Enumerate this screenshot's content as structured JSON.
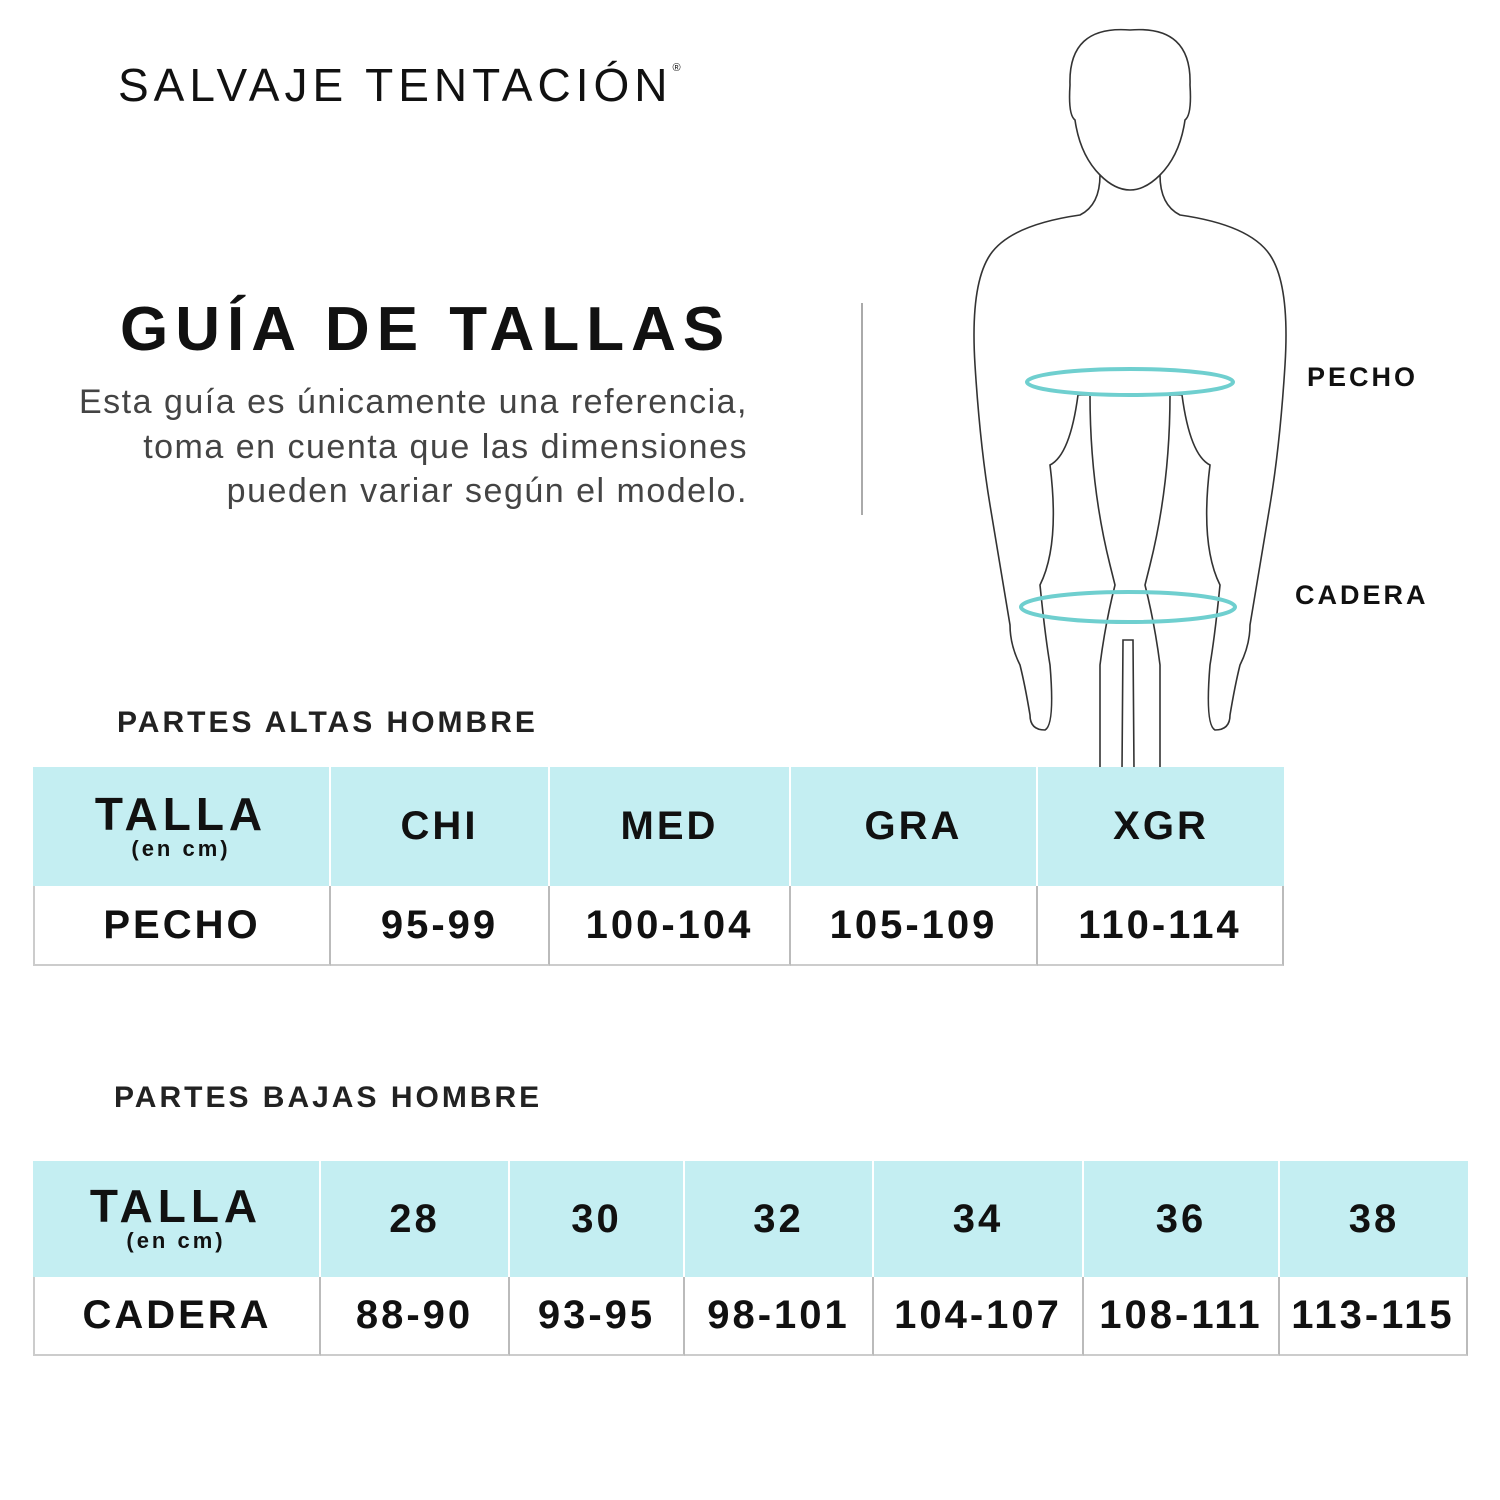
{
  "brand": {
    "name": "SALVAJE TENTACIÓN",
    "mark": "®"
  },
  "title": "GUÍA DE TALLAS",
  "description": "Esta guía es únicamente una referencia, toma en cuenta que las dimensiones pueden variar según el modelo.",
  "figure": {
    "labels": {
      "chest": "PECHO",
      "hip": "CADERA"
    },
    "ring_color": "#6fcfcf"
  },
  "colors": {
    "header_bg": "#c4eef2"
  },
  "top_table": {
    "section_title": "PARTES ALTAS HOMBRE",
    "header": {
      "label": "TALLA",
      "unit": "(en cm)"
    },
    "sizes": [
      "CHI",
      "MED",
      "GRA",
      "XGR"
    ],
    "row": {
      "label": "PECHO",
      "values": [
        "95-99",
        "100-104",
        "105-109",
        "110-114"
      ]
    }
  },
  "bottom_table": {
    "section_title": "PARTES BAJAS HOMBRE",
    "header": {
      "label": "TALLA",
      "unit": "(en cm)"
    },
    "sizes": [
      "28",
      "30",
      "32",
      "34",
      "36",
      "38"
    ],
    "row": {
      "label": "CADERA",
      "values": [
        "88-90",
        "93-95",
        "98-101",
        "104-107",
        "108-111",
        "113-115"
      ]
    }
  }
}
